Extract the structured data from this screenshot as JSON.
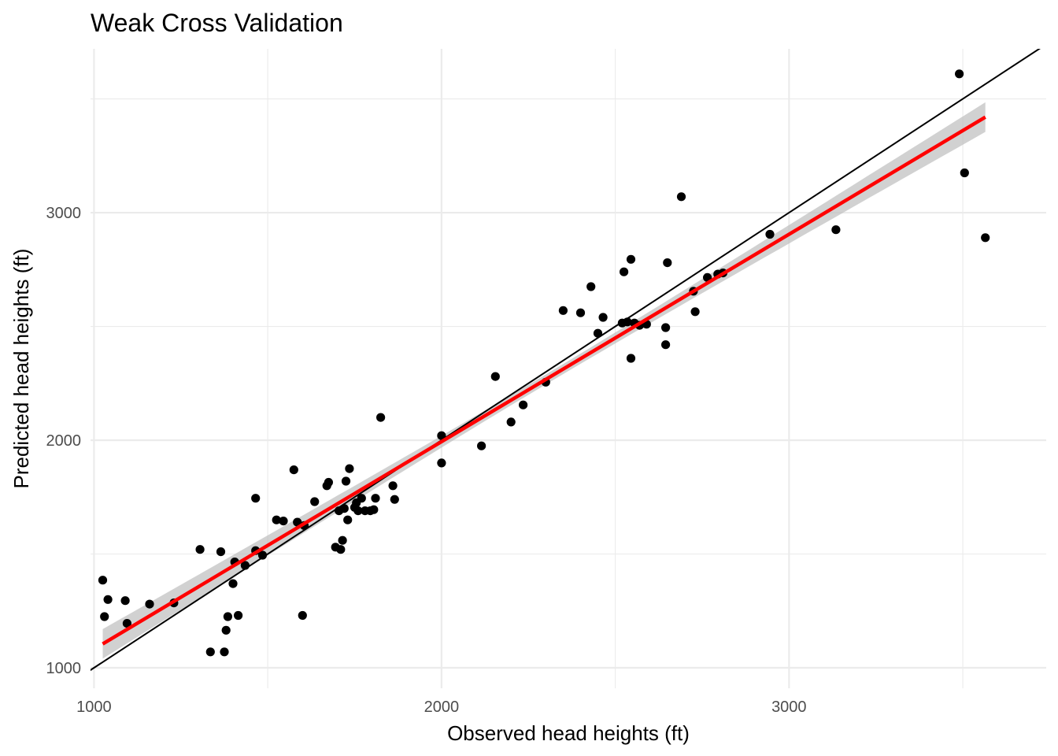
{
  "chart_data": {
    "type": "scatter",
    "title": "Weak Cross Validation",
    "xlabel": "Observed head heights (ft)",
    "ylabel": "Predicted head heights (ft)",
    "xlim": [
      990,
      3740
    ],
    "ylim": [
      910,
      3720
    ],
    "x_ticks": [
      1000,
      2000,
      3000
    ],
    "y_ticks": [
      1000,
      2000,
      3000
    ],
    "grid": true,
    "legend": "none",
    "colors": {
      "points": "#000000",
      "fit_line": "#ff0000",
      "confidence_band": "#bebebe",
      "identity_line": "#000000",
      "grid": "#ebebeb"
    },
    "identity_line": {
      "slope": 1,
      "intercept": 0
    },
    "fit_line": {
      "x_range": [
        1025,
        3565
      ],
      "y_start": 1105,
      "y_end": 3420,
      "band_halfwidth_ends": 65,
      "band_halfwidth_center": 22
    },
    "points": [
      [
        1025,
        1385
      ],
      [
        1030,
        1225
      ],
      [
        1040,
        1300
      ],
      [
        1090,
        1295
      ],
      [
        1095,
        1195
      ],
      [
        1160,
        1280
      ],
      [
        1230,
        1285
      ],
      [
        1305,
        1520
      ],
      [
        1335,
        1070
      ],
      [
        1365,
        1510
      ],
      [
        1375,
        1070
      ],
      [
        1380,
        1165
      ],
      [
        1385,
        1225
      ],
      [
        1400,
        1370
      ],
      [
        1405,
        1465
      ],
      [
        1415,
        1230
      ],
      [
        1435,
        1450
      ],
      [
        1465,
        1745
      ],
      [
        1465,
        1515
      ],
      [
        1485,
        1495
      ],
      [
        1525,
        1650
      ],
      [
        1545,
        1645
      ],
      [
        1575,
        1870
      ],
      [
        1585,
        1640
      ],
      [
        1600,
        1230
      ],
      [
        1605,
        1625
      ],
      [
        1635,
        1730
      ],
      [
        1670,
        1800
      ],
      [
        1675,
        1815
      ],
      [
        1695,
        1530
      ],
      [
        1705,
        1690
      ],
      [
        1710,
        1520
      ],
      [
        1715,
        1560
      ],
      [
        1720,
        1700
      ],
      [
        1725,
        1820
      ],
      [
        1730,
        1650
      ],
      [
        1735,
        1875
      ],
      [
        1750,
        1705
      ],
      [
        1755,
        1725
      ],
      [
        1760,
        1690
      ],
      [
        1770,
        1745
      ],
      [
        1780,
        1690
      ],
      [
        1795,
        1690
      ],
      [
        1805,
        1695
      ],
      [
        1810,
        1745
      ],
      [
        1825,
        2100
      ],
      [
        1860,
        1800
      ],
      [
        1865,
        1740
      ],
      [
        2000,
        2020
      ],
      [
        2000,
        1900
      ],
      [
        2115,
        1975
      ],
      [
        2155,
        2280
      ],
      [
        2200,
        2080
      ],
      [
        2235,
        2155
      ],
      [
        2300,
        2255
      ],
      [
        2350,
        2570
      ],
      [
        2400,
        2560
      ],
      [
        2430,
        2675
      ],
      [
        2450,
        2470
      ],
      [
        2465,
        2540
      ],
      [
        2520,
        2515
      ],
      [
        2525,
        2740
      ],
      [
        2535,
        2520
      ],
      [
        2545,
        2360
      ],
      [
        2545,
        2795
      ],
      [
        2555,
        2515
      ],
      [
        2570,
        2505
      ],
      [
        2590,
        2510
      ],
      [
        2645,
        2495
      ],
      [
        2645,
        2420
      ],
      [
        2650,
        2780
      ],
      [
        2690,
        3070
      ],
      [
        2725,
        2655
      ],
      [
        2730,
        2565
      ],
      [
        2765,
        2715
      ],
      [
        2795,
        2730
      ],
      [
        2810,
        2735
      ],
      [
        2945,
        2905
      ],
      [
        3135,
        2925
      ],
      [
        3490,
        3610
      ],
      [
        3505,
        3175
      ],
      [
        3565,
        2890
      ]
    ]
  }
}
